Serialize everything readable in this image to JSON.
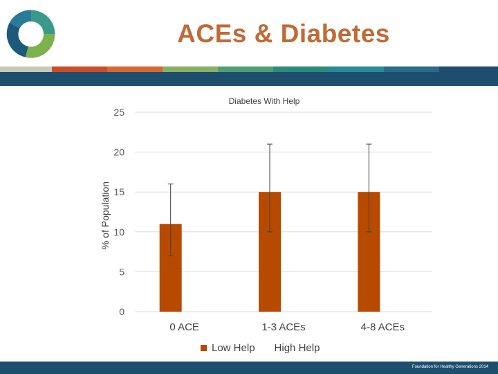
{
  "slide": {
    "title": "ACEs & Diabetes",
    "footer": "Foundation for Healthy Generations 2014",
    "logo_icon": "three-people-circle-logo-icon",
    "strip_colors": [
      "#c8c8b8",
      "#c94f2a",
      "#d06a32",
      "#8ab066",
      "#4f9e78",
      "#2e8a7a",
      "#2a8a96",
      "#2a6a8a",
      "#1d4e6e"
    ]
  },
  "chart_data": {
    "type": "bar",
    "title": "Diabetes With Help",
    "xlabel": "",
    "ylabel": "% of Population",
    "categories": [
      "0 ACE",
      "1-3 ACEs",
      "4-8 ACEs"
    ],
    "series": [
      {
        "name": "Low Help",
        "color": "#b84a00",
        "values": [
          11,
          15,
          15
        ],
        "error_low": [
          7,
          10,
          10
        ],
        "error_high": [
          16,
          21,
          21
        ]
      },
      {
        "name": "High Help",
        "color": "#ffffff",
        "values": [
          0,
          0,
          0
        ]
      }
    ],
    "ylim": [
      0,
      25
    ],
    "yticks": [
      0,
      5,
      10,
      15,
      20,
      25
    ],
    "grid": true,
    "legend": "bottom"
  }
}
